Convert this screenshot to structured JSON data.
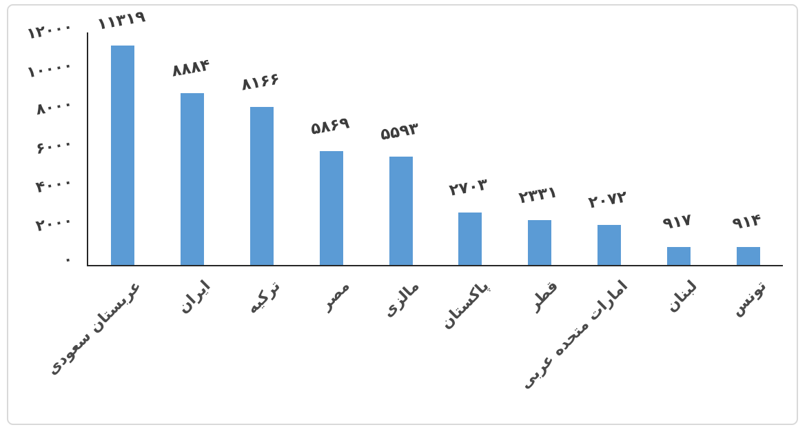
{
  "chart_data": {
    "type": "bar",
    "title": "",
    "xlabel": "",
    "ylabel": "",
    "grid": false,
    "legend": "none",
    "ylim": [
      0,
      12000
    ],
    "categories": [
      "عربستان سعودی",
      "ایران",
      "ترکیه",
      "مصر",
      "مالزی",
      "پاکستان",
      "قطر",
      "امارات متحده عربی",
      "لبنان",
      "تونس"
    ],
    "values": [
      11319,
      8884,
      8166,
      5869,
      5593,
      2703,
      2331,
      2072,
      917,
      914
    ],
    "value_labels": [
      "۱۱۳۱۹",
      "۸۸۸۴",
      "۸۱۶۶",
      "۵۸۶۹",
      "۵۵۹۳",
      "۲۷۰۳",
      "۲۳۳۱",
      "۲۰۷۲",
      "۹۱۷",
      "۹۱۴"
    ],
    "y_ticks": [
      {
        "value": 12000,
        "label": "۱۲۰۰۰"
      },
      {
        "value": 10000,
        "label": "۱۰۰۰۰"
      },
      {
        "value": 8000,
        "label": "۸۰۰۰"
      },
      {
        "value": 6000,
        "label": "۶۰۰۰"
      },
      {
        "value": 4000,
        "label": "۴۰۰۰"
      },
      {
        "value": 2000,
        "label": "۲۰۰۰"
      },
      {
        "value": 0,
        "label": "۰"
      }
    ],
    "colors": {
      "bar": "#5B9BD5",
      "value_text": "#3c3c3c",
      "category_text": "#4a4a4a",
      "axis_line": "#262626",
      "frame_border": "#d9d9d9"
    }
  }
}
